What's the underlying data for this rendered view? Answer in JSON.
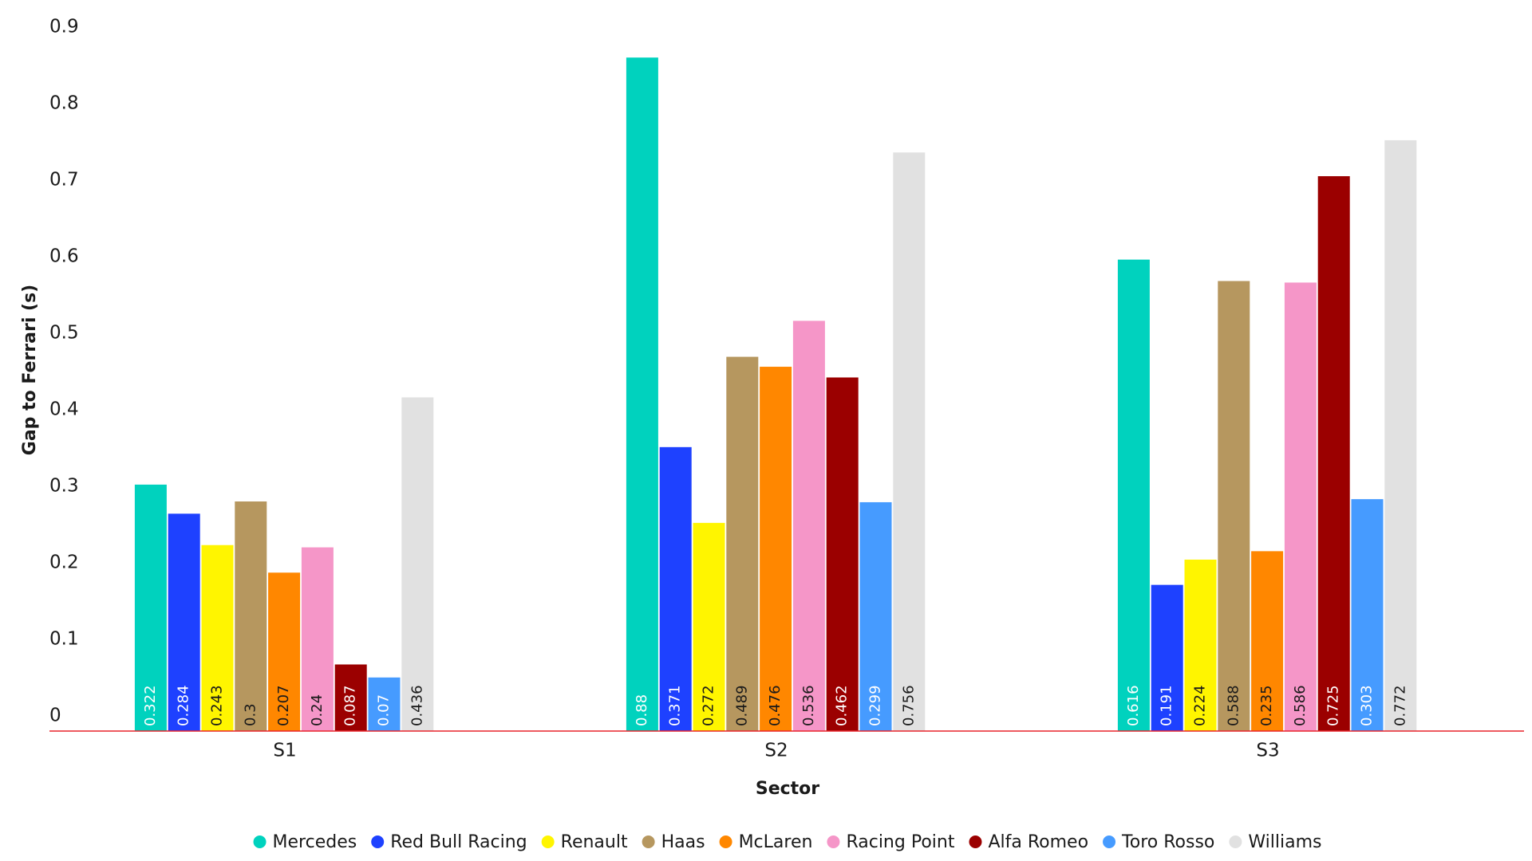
{
  "chart_data": {
    "type": "bar",
    "x_label": "Sector",
    "y_label": "Gap to Ferrari (s)",
    "categories": [
      "S1",
      "S2",
      "S3"
    ],
    "series": [
      {
        "name": "Mercedes",
        "color": "#00d2be",
        "values": [
          0.322,
          0.88,
          0.616
        ]
      },
      {
        "name": "Red Bull Racing",
        "color": "#1e41ff",
        "values": [
          0.284,
          0.371,
          0.191
        ]
      },
      {
        "name": "Renault",
        "color": "#fff500",
        "values": [
          0.243,
          0.272,
          0.224
        ]
      },
      {
        "name": "Haas",
        "color": "#b6975f",
        "values": [
          0.3,
          0.489,
          0.588
        ]
      },
      {
        "name": "McLaren",
        "color": "#ff8700",
        "values": [
          0.207,
          0.476,
          0.235
        ]
      },
      {
        "name": "Racing Point",
        "color": "#f596c8",
        "values": [
          0.24,
          0.536,
          0.586
        ]
      },
      {
        "name": "Alfa Romeo",
        "color": "#9b0000",
        "values": [
          0.087,
          0.462,
          0.725
        ]
      },
      {
        "name": "Toro Rosso",
        "color": "#469bff",
        "values": [
          0.07,
          0.299,
          0.303
        ]
      },
      {
        "name": "Williams",
        "color": "#e1e1e1",
        "values": [
          0.436,
          0.756,
          0.772
        ]
      }
    ],
    "ylim": [
      0,
      0.9
    ],
    "yticks": [
      0,
      0.1,
      0.2,
      0.3,
      0.4,
      0.5,
      0.6,
      0.7,
      0.8,
      0.9
    ],
    "baseline_color": "#e8242c",
    "grid": false
  }
}
